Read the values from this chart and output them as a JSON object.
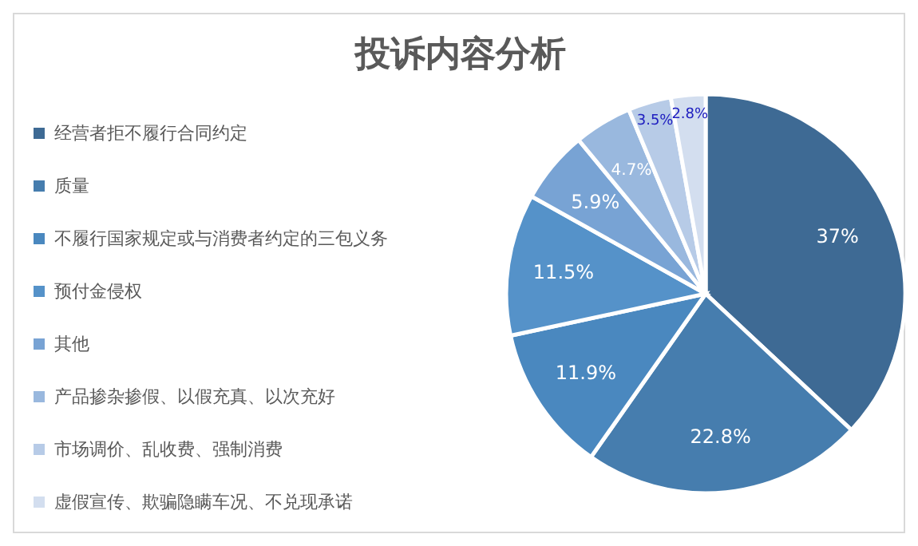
{
  "chart_data": {
    "type": "pie",
    "title": "投诉内容分析",
    "categories": [
      "经营者拒不履行合同约定",
      "质量",
      "不履行国家规定或与消费者约定的三包义务",
      "预付金侵权",
      "其他",
      "产品掺杂掺假、以假充真、以次充好",
      "市场调价、乱收费、强制消费",
      "虚假宣传、欺骗隐瞒车况、不兑现承诺"
    ],
    "values": [
      37,
      22.8,
      11.9,
      11.5,
      5.9,
      4.7,
      3.5,
      2.8
    ],
    "value_labels": [
      "37%",
      "22.8%",
      "11.9%",
      "11.5%",
      "5.9%",
      "4.7%",
      "3.5%",
      "2.8%"
    ],
    "colors": [
      "#3e6a94",
      "#467dae",
      "#4a88bf",
      "#5592c9",
      "#78a3d4",
      "#99b8de",
      "#b7cbe7",
      "#d3deef"
    ],
    "legend": "left"
  }
}
